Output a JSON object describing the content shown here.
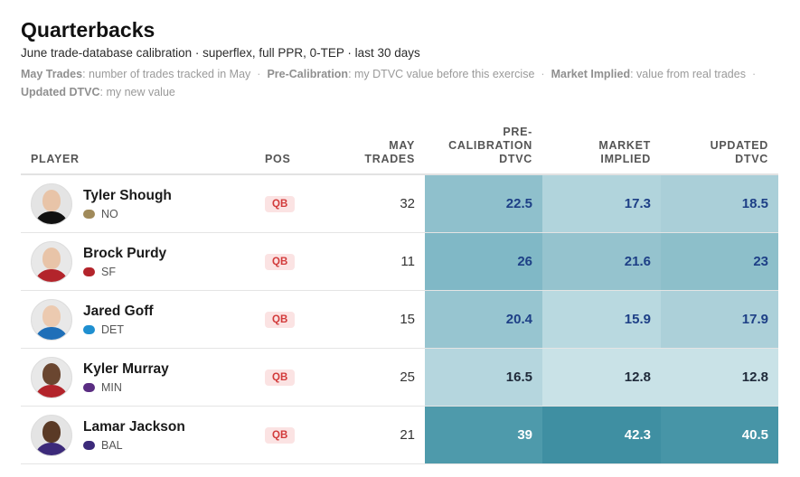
{
  "header": {
    "title": "Quarterbacks",
    "subtitle": "June trade-database calibration · superflex, full PPR, 0-TEP · last 30 days"
  },
  "legend": [
    {
      "term": "May Trades",
      "desc": ": number of trades tracked in May"
    },
    {
      "term": "Pre-Calibration",
      "desc": ": my DTVC value before this exercise"
    },
    {
      "term": "Market Implied",
      "desc": ": value from real trades"
    },
    {
      "term": "Updated DTVC",
      "desc": ": my new value"
    }
  ],
  "columns": {
    "player": "PLAYER",
    "pos": "POS",
    "may_trades": [
      "MAY",
      "TRADES"
    ],
    "pre": [
      "PRE-",
      "CALIBRATION",
      "DTVC"
    ],
    "market": [
      "MARKET",
      "IMPLIED"
    ],
    "updated": [
      "UPDATED",
      "DTVC"
    ]
  },
  "rows": [
    {
      "name": "Tyler Shough",
      "team": "NO",
      "pos": "QB",
      "may_trades": "32",
      "pre": "22.5",
      "market": "17.3",
      "updated": "18.5",
      "colors": {
        "pre": "#8fc0cc",
        "market": "#b1d4dc",
        "updated": "#aacfd8",
        "pre_text": "#1d3f86",
        "market_text": "#1d3f86",
        "updated_text": "#1d3f86",
        "jersey": "#111111",
        "skin": "#e8c4a8",
        "team": "#a08a5a",
        "bg": "#e4e4e4"
      }
    },
    {
      "name": "Brock Purdy",
      "team": "SF",
      "pos": "QB",
      "may_trades": "11",
      "pre": "26",
      "market": "21.6",
      "updated": "23",
      "colors": {
        "pre": "#80b8c6",
        "market": "#95c3ce",
        "updated": "#8dbfca",
        "pre_text": "#1d3f86",
        "market_text": "#1d3f86",
        "updated_text": "#1d3f86",
        "jersey": "#b3242b",
        "skin": "#e8c4a8",
        "team": "#b3242b",
        "bg": "#e8e8e8"
      }
    },
    {
      "name": "Jared Goff",
      "team": "DET",
      "pos": "QB",
      "may_trades": "15",
      "pre": "20.4",
      "market": "15.9",
      "updated": "17.9",
      "colors": {
        "pre": "#97c5d0",
        "market": "#b9d9e0",
        "updated": "#acd0d9",
        "pre_text": "#1d3f86",
        "market_text": "#1d3f86",
        "updated_text": "#1d3f86",
        "jersey": "#1f6fb8",
        "skin": "#eccab0",
        "team": "#1f8fd0",
        "bg": "#e8e8e8"
      }
    },
    {
      "name": "Kyler Murray",
      "team": "MIN",
      "pos": "QB",
      "may_trades": "25",
      "pre": "16.5",
      "market": "12.8",
      "updated": "12.8",
      "colors": {
        "pre": "#b5d6de",
        "market": "#c9e2e7",
        "updated": "#c9e2e7",
        "pre_text": "#1f2a3a",
        "market_text": "#1f2a3a",
        "updated_text": "#1f2a3a",
        "jersey": "#b3242b",
        "skin": "#6a4630",
        "team": "#5a2d82",
        "bg": "#e8e8e8"
      }
    },
    {
      "name": "Lamar Jackson",
      "team": "BAL",
      "pos": "QB",
      "may_trades": "21",
      "pre": "39",
      "market": "42.3",
      "updated": "40.5",
      "colors": {
        "pre": "#4e9aab",
        "market": "#3f8fa2",
        "updated": "#4795a7",
        "pre_text": "#ffffff",
        "market_text": "#ffffff",
        "updated_text": "#ffffff",
        "jersey": "#3c2a7a",
        "skin": "#5a3a26",
        "team": "#3c2a7a",
        "bg": "#e4e4e4"
      }
    }
  ]
}
